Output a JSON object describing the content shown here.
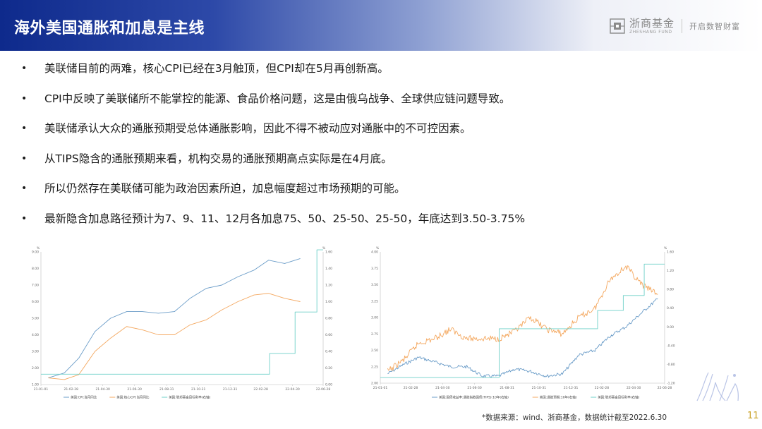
{
  "header": {
    "title": "海外美国通胀和加息是主线",
    "brand_cn": "浙商基金",
    "brand_en": "ZHESHANG FUND",
    "slogan": "开启数智财富"
  },
  "bullets": [
    "美联储目前的两难，核心CPI已经在3月触顶，但CPI却在5月再创新高。",
    "CPI中反映了美联储所不能掌控的能源、食品价格问题，这是由俄乌战争、全球供应链问题导致。",
    "美联储承认大众的通胀预期受总体通胀影响，因此不得不被动应对通胀中的不可控因素。",
    "从TIPS隐含的通胀预期来看，机构交易的通胀预期高点实际是在4月底。",
    "所以仍然存在美联储可能为政治因素所迫，加息幅度超过市场预期的可能。",
    "最新隐含加息路径预计为7、9、11、12月各加息75、50、25-50、25-50，年底达到3.50-3.75%"
  ],
  "footnote": "*数据来源：wind、浙商基金，数据统计截至2022.6.30",
  "page_number": "11",
  "colors": {
    "header_dark": "#0e2a8c",
    "series_blue": "#6a9cc8",
    "series_orange": "#f4a860",
    "series_teal": "#6ed0c8",
    "page_number": "#c9a227"
  },
  "chart_data": [
    {
      "type": "line",
      "left_unit": "%",
      "right_unit": "%",
      "x": [
        "21-01-01",
        "21-02-28",
        "21-04-30",
        "21-06-30",
        "21-08-31",
        "21-10-31",
        "21-12-31",
        "22-02-28",
        "22-04-30",
        "22-06-28"
      ],
      "x_ticks": [
        "21-01-01",
        "21-02-28",
        "21-04-30",
        "21-06-30",
        "21-08-31",
        "21-10-31",
        "21-12-31",
        "22-02-28",
        "22-04-30",
        "22-06-28"
      ],
      "y_left_ticks": [
        "1.00",
        "2.00",
        "3.00",
        "4.00",
        "5.00",
        "6.00",
        "7.00",
        "8.00",
        "9.00"
      ],
      "y_left_lim": [
        1.0,
        9.0
      ],
      "y_right_ticks": [
        "0.00",
        "0.20",
        "0.40",
        "0.60",
        "0.80",
        "1.00",
        "1.20",
        "1.40",
        "1.60"
      ],
      "y_right_lim": [
        0.0,
        1.6
      ],
      "series": [
        {
          "name": "美国:CPI:当月同比",
          "axis": "left",
          "color": "#6a9cc8",
          "points": [
            [
              "21-01",
              1.4
            ],
            [
              "21-02",
              1.7
            ],
            [
              "21-03",
              2.6
            ],
            [
              "21-04",
              4.2
            ],
            [
              "21-05",
              5.0
            ],
            [
              "21-06",
              5.4
            ],
            [
              "21-07",
              5.4
            ],
            [
              "21-08",
              5.3
            ],
            [
              "21-09",
              5.4
            ],
            [
              "21-10",
              6.2
            ],
            [
              "21-11",
              6.8
            ],
            [
              "21-12",
              7.0
            ],
            [
              "22-01",
              7.5
            ],
            [
              "22-02",
              7.9
            ],
            [
              "22-03",
              8.5
            ],
            [
              "22-04",
              8.3
            ],
            [
              "22-05",
              8.6
            ]
          ]
        },
        {
          "name": "美国:核心CPI:当月同比",
          "axis": "left",
          "color": "#f4a860",
          "points": [
            [
              "21-01",
              1.4
            ],
            [
              "21-02",
              1.3
            ],
            [
              "21-03",
              1.6
            ],
            [
              "21-04",
              3.0
            ],
            [
              "21-05",
              3.8
            ],
            [
              "21-06",
              4.5
            ],
            [
              "21-07",
              4.3
            ],
            [
              "21-08",
              4.0
            ],
            [
              "21-09",
              4.0
            ],
            [
              "21-10",
              4.6
            ],
            [
              "21-11",
              4.9
            ],
            [
              "21-12",
              5.5
            ],
            [
              "22-01",
              6.0
            ],
            [
              "22-02",
              6.4
            ],
            [
              "22-03",
              6.5
            ],
            [
              "22-04",
              6.2
            ],
            [
              "22-05",
              6.0
            ]
          ]
        },
        {
          "name": "美国:联邦基金目标利率(右轴)",
          "axis": "right",
          "color": "#6ed0c8",
          "steps": [
            [
              "21-01-01",
              0.125
            ],
            [
              "22-03-17",
              0.375
            ],
            [
              "22-05-05",
              0.875
            ],
            [
              "22-06-16",
              1.625
            ],
            [
              "22-06-28",
              1.625
            ]
          ]
        }
      ]
    },
    {
      "type": "line",
      "left_unit": "%",
      "right_unit": "%",
      "x_ticks": [
        "21-01-01",
        "21-02-28",
        "21-04-30",
        "21-06-30",
        "21-08-31",
        "21-10-31",
        "21-12-31",
        "22-02-28",
        "22-04-30",
        "22-06-28"
      ],
      "y_left_ticks": [
        "2.00",
        "2.25",
        "2.50",
        "2.75",
        "3.00",
        "3.25",
        "3.50",
        "3.75",
        "4.00"
      ],
      "y_left_lim": [
        2.0,
        4.0
      ],
      "y_right_ticks": [
        "-1.20",
        "-0.80",
        "-0.40",
        "0.00",
        "0.40",
        "0.80",
        "1.20",
        "1.60"
      ],
      "y_right_lim": [
        -1.2,
        1.6
      ],
      "series": [
        {
          "name": "美国:国债收益率:通胀指数国债(TIPS):10年(右轴)",
          "axis": "right",
          "color": "#6a9cc8",
          "points": [
            [
              "21-01",
              -1.0
            ],
            [
              "21-02",
              -0.8
            ],
            [
              "21-03",
              -0.65
            ],
            [
              "21-04",
              -0.75
            ],
            [
              "21-05",
              -0.85
            ],
            [
              "21-06",
              -0.85
            ],
            [
              "21-07",
              -1.05
            ],
            [
              "21-08",
              -1.05
            ],
            [
              "21-09",
              -0.9
            ],
            [
              "21-10",
              -0.95
            ],
            [
              "21-11",
              -1.05
            ],
            [
              "21-12",
              -1.0
            ],
            [
              "22-01",
              -0.6
            ],
            [
              "22-02",
              -0.5
            ],
            [
              "22-03",
              -0.2
            ],
            [
              "22-04",
              0.0
            ],
            [
              "22-05",
              0.3
            ],
            [
              "22-06",
              0.6
            ]
          ]
        },
        {
          "name": "美国:通胀预期:10年(右轴)",
          "axis": "right",
          "color": "#f4a860",
          "points": [
            [
              "21-01",
              -0.95
            ],
            [
              "21-02",
              -0.7
            ],
            [
              "21-03",
              -0.35
            ],
            [
              "21-04",
              -0.25
            ],
            [
              "21-05",
              -0.05
            ],
            [
              "21-06",
              -0.25
            ],
            [
              "21-07",
              -0.25
            ],
            [
              "21-08",
              -0.25
            ],
            [
              "21-09",
              -0.1
            ],
            [
              "21-10",
              0.2
            ],
            [
              "21-11",
              -0.05
            ],
            [
              "21-12",
              -0.15
            ],
            [
              "22-01",
              0.2
            ],
            [
              "22-02",
              0.4
            ],
            [
              "22-03",
              1.0
            ],
            [
              "22-04",
              1.3
            ],
            [
              "22-05",
              0.9
            ],
            [
              "22-06",
              0.7
            ]
          ]
        },
        {
          "name": "美国:联邦基金目标利率(右轴)",
          "axis": "right",
          "color": "#6ed0c8",
          "steps": [
            [
              "21-01-01",
              -1.08
            ],
            [
              "21-08-16",
              -0.04
            ],
            [
              "22-02-20",
              0.35
            ],
            [
              "22-04-10",
              0.67
            ],
            [
              "22-05-20",
              1.34
            ],
            [
              "22-06-28",
              1.34
            ]
          ]
        }
      ]
    }
  ]
}
